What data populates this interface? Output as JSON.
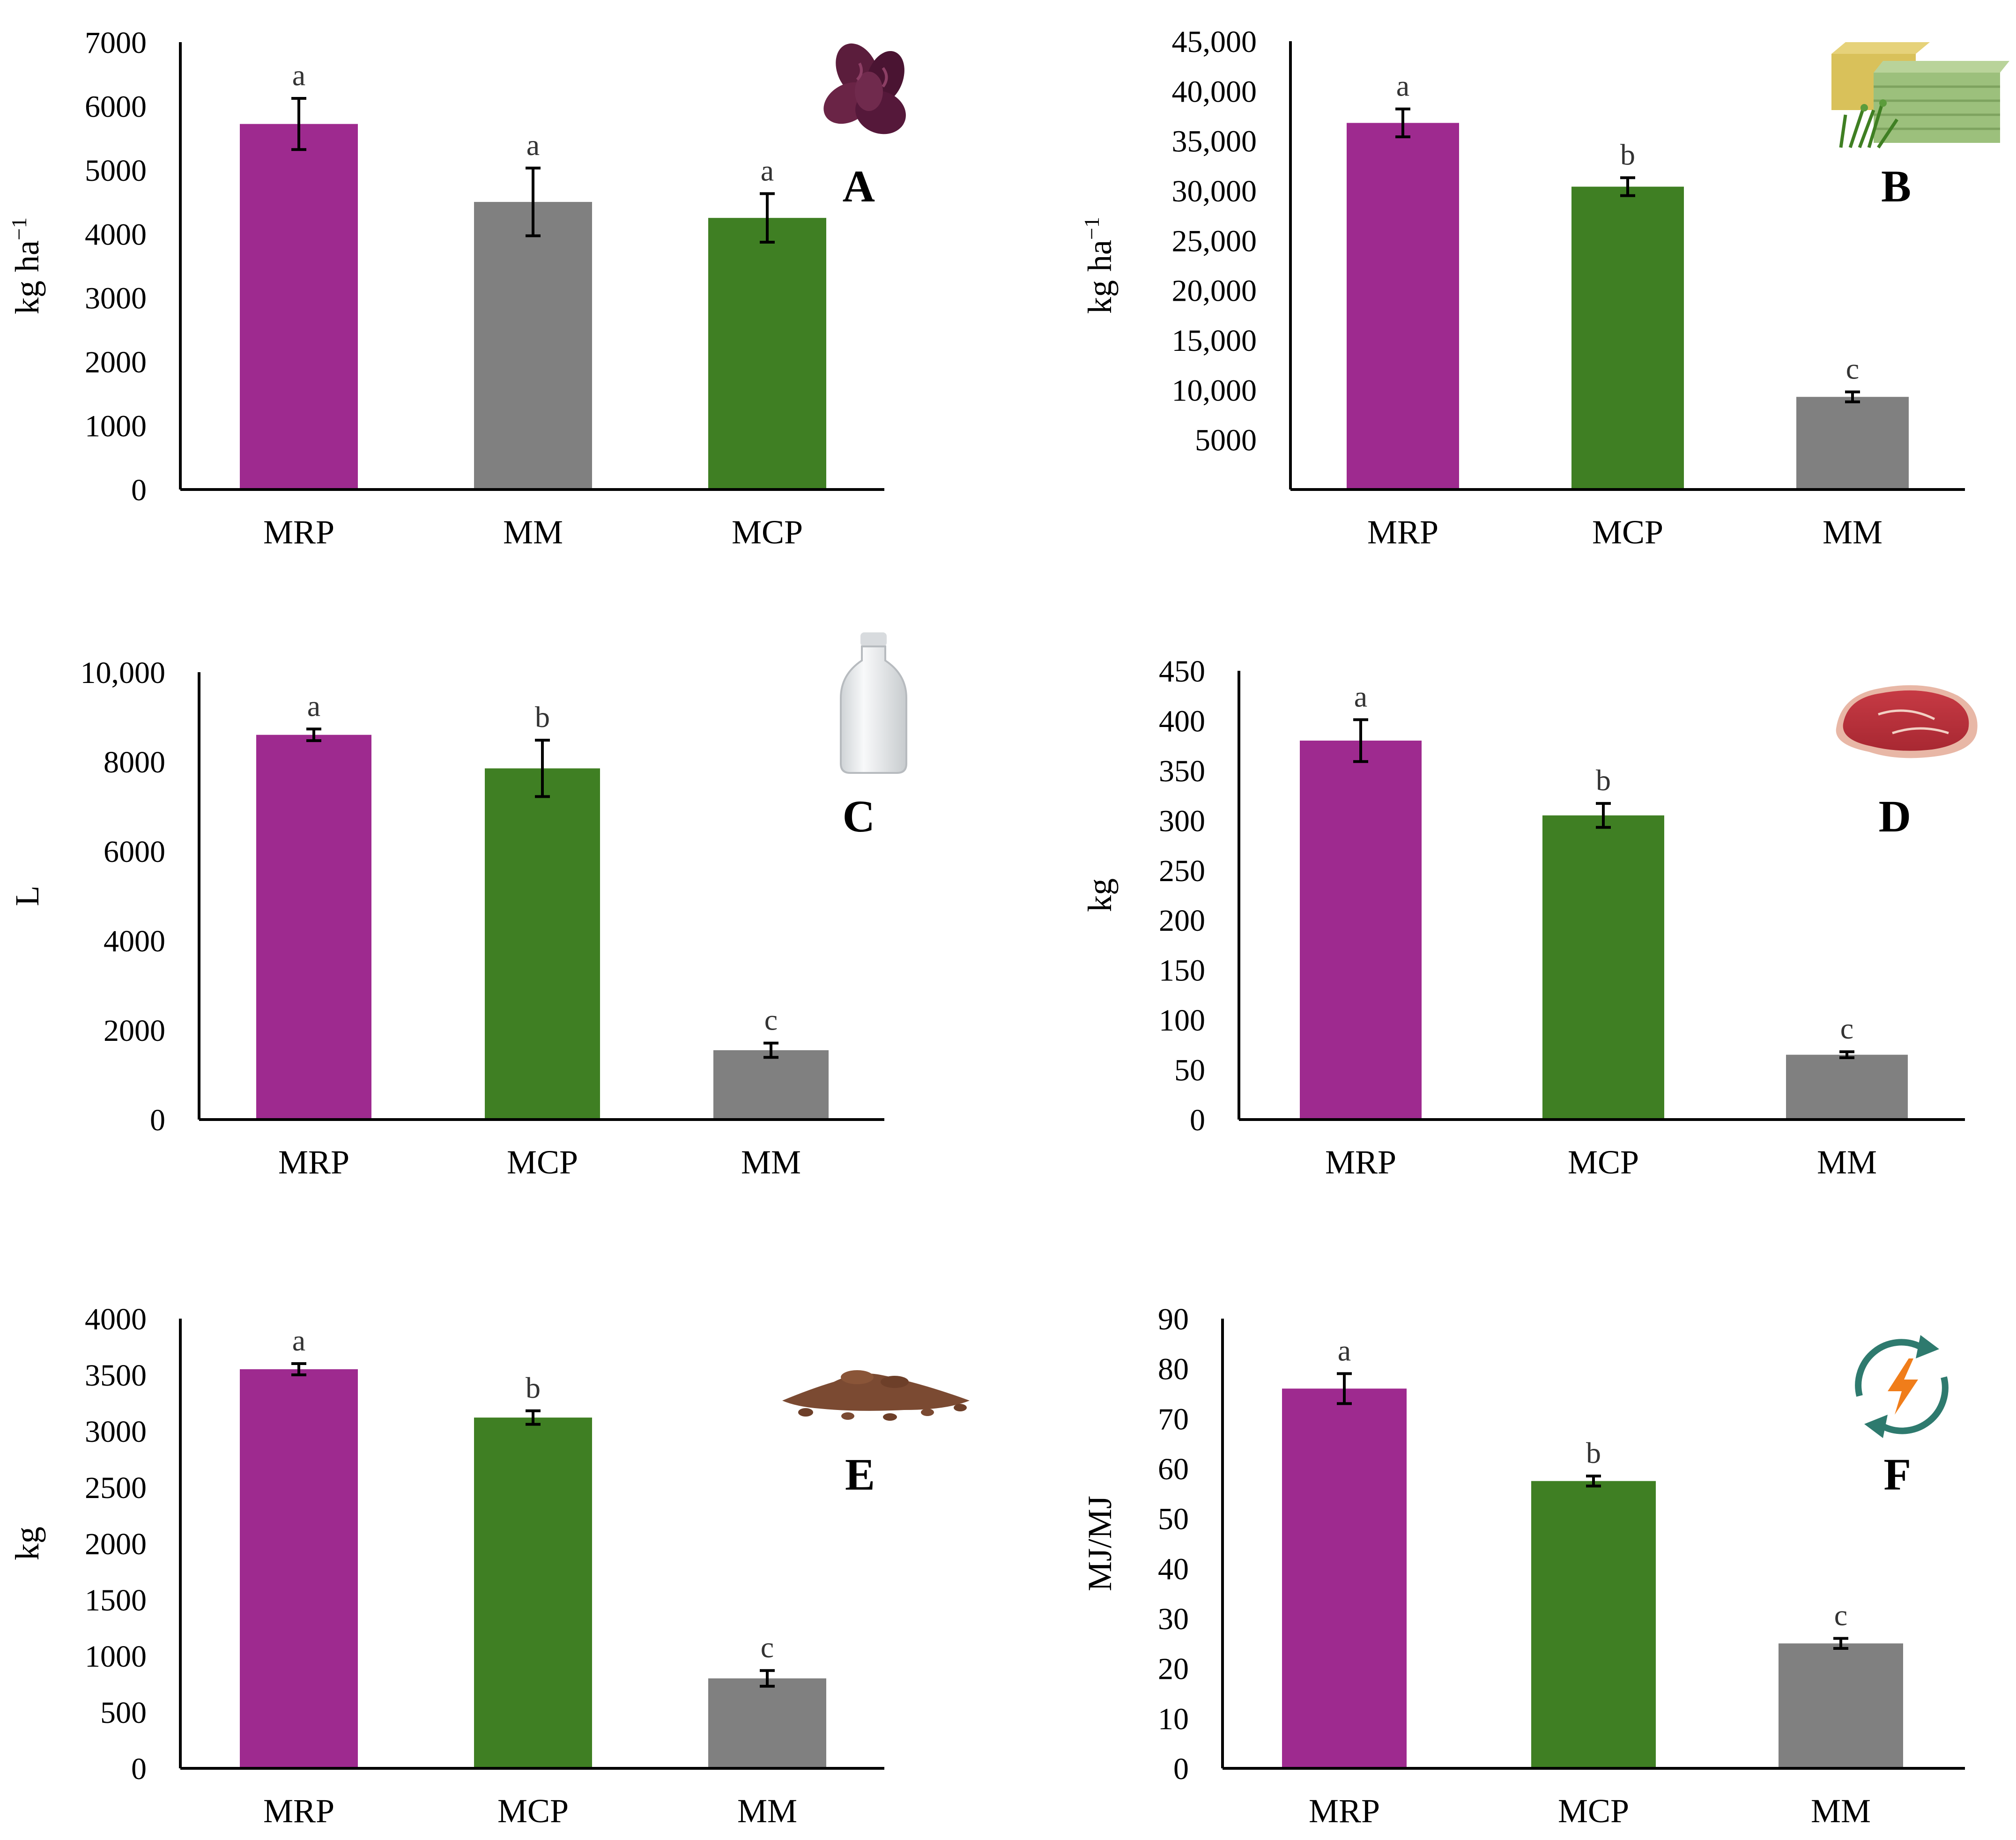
{
  "colors": {
    "MRP": "#9e2a8f",
    "MCP": "#3f7f23",
    "MM": "#808080"
  },
  "chart_data": [
    {
      "panel": "A",
      "type": "bar",
      "icon": "grain-seeds-icon",
      "ylabel": "kg ha",
      "ylabel_sup": "−1",
      "ylim": [
        0,
        7000
      ],
      "yticks": [
        0,
        1000,
        2000,
        3000,
        4000,
        5000,
        6000,
        7000
      ],
      "ytick_labels": [
        "0",
        "1000",
        "2000",
        "3000",
        "4000",
        "5000",
        "6000",
        "7000"
      ],
      "categories": [
        "MRP",
        "MM",
        "MCP"
      ],
      "values": [
        5720,
        4500,
        4250
      ],
      "errors": [
        400,
        530,
        380
      ],
      "significance": [
        "a",
        "a",
        "a"
      ]
    },
    {
      "panel": "B",
      "type": "bar",
      "icon": "hay-bales-icon",
      "ylabel": "kg ha",
      "ylabel_sup": "−1",
      "ylim": [
        0,
        45000
      ],
      "yticks": [
        5000,
        10000,
        15000,
        20000,
        25000,
        30000,
        35000,
        40000,
        45000
      ],
      "ytick_labels": [
        "5000",
        "10,000",
        "15,000",
        "20,000",
        "25,000",
        "30,000",
        "35,000",
        "40,000",
        "45,000"
      ],
      "categories": [
        "MRP",
        "MCP",
        "MM"
      ],
      "values": [
        36800,
        30400,
        9300
      ],
      "errors": [
        1400,
        900,
        500
      ],
      "significance": [
        "a",
        "b",
        "c"
      ]
    },
    {
      "panel": "C",
      "type": "bar",
      "icon": "milk-bottle-icon",
      "ylabel": "L",
      "ylabel_sup": "",
      "ylim": [
        0,
        10000
      ],
      "yticks": [
        0,
        2000,
        4000,
        6000,
        8000,
        10000
      ],
      "ytick_labels": [
        "0",
        "2000",
        "4000",
        "6000",
        "8000",
        "10,000"
      ],
      "categories": [
        "MRP",
        "MCP",
        "MM"
      ],
      "values": [
        8600,
        7850,
        1550
      ],
      "errors": [
        130,
        630,
        160
      ],
      "significance": [
        "a",
        "b",
        "c"
      ]
    },
    {
      "panel": "D",
      "type": "bar",
      "icon": "meat-steak-icon",
      "ylabel": "kg",
      "ylabel_sup": "",
      "ylim": [
        0,
        450
      ],
      "yticks": [
        0,
        50,
        100,
        150,
        200,
        250,
        300,
        350,
        400,
        450
      ],
      "ytick_labels": [
        "0",
        "50",
        "100",
        "150",
        "200",
        "250",
        "300",
        "350",
        "400",
        "450"
      ],
      "categories": [
        "MRP",
        "MCP",
        "MM"
      ],
      "values": [
        380,
        305,
        65
      ],
      "errors": [
        21,
        12,
        3
      ],
      "significance": [
        "a",
        "b",
        "c"
      ]
    },
    {
      "panel": "E",
      "type": "bar",
      "icon": "manure-pile-icon",
      "ylabel": "kg",
      "ylabel_sup": "",
      "ylim": [
        0,
        4000
      ],
      "yticks": [
        0,
        500,
        1000,
        1500,
        2000,
        2500,
        3000,
        3500,
        4000
      ],
      "ytick_labels": [
        "0",
        "500",
        "1000",
        "1500",
        "2000",
        "2500",
        "3000",
        "3500",
        "4000"
      ],
      "categories": [
        "MRP",
        "MCP",
        "MM"
      ],
      "values": [
        3550,
        3120,
        800
      ],
      "errors": [
        50,
        60,
        70
      ],
      "significance": [
        "a",
        "b",
        "c"
      ]
    },
    {
      "panel": "F",
      "type": "bar",
      "icon": "energy-cycle-icon",
      "ylabel": "MJ/MJ",
      "ylabel_sup": "",
      "ylim": [
        0,
        90
      ],
      "yticks": [
        0,
        10,
        20,
        30,
        40,
        50,
        60,
        70,
        80,
        90
      ],
      "ytick_labels": [
        "0",
        "10",
        "20",
        "30",
        "40",
        "50",
        "60",
        "70",
        "80",
        "90"
      ],
      "categories": [
        "MRP",
        "MCP",
        "MM"
      ],
      "values": [
        76,
        57.5,
        25
      ],
      "errors": [
        3,
        1,
        1
      ],
      "significance": [
        "a",
        "b",
        "c"
      ]
    }
  ]
}
